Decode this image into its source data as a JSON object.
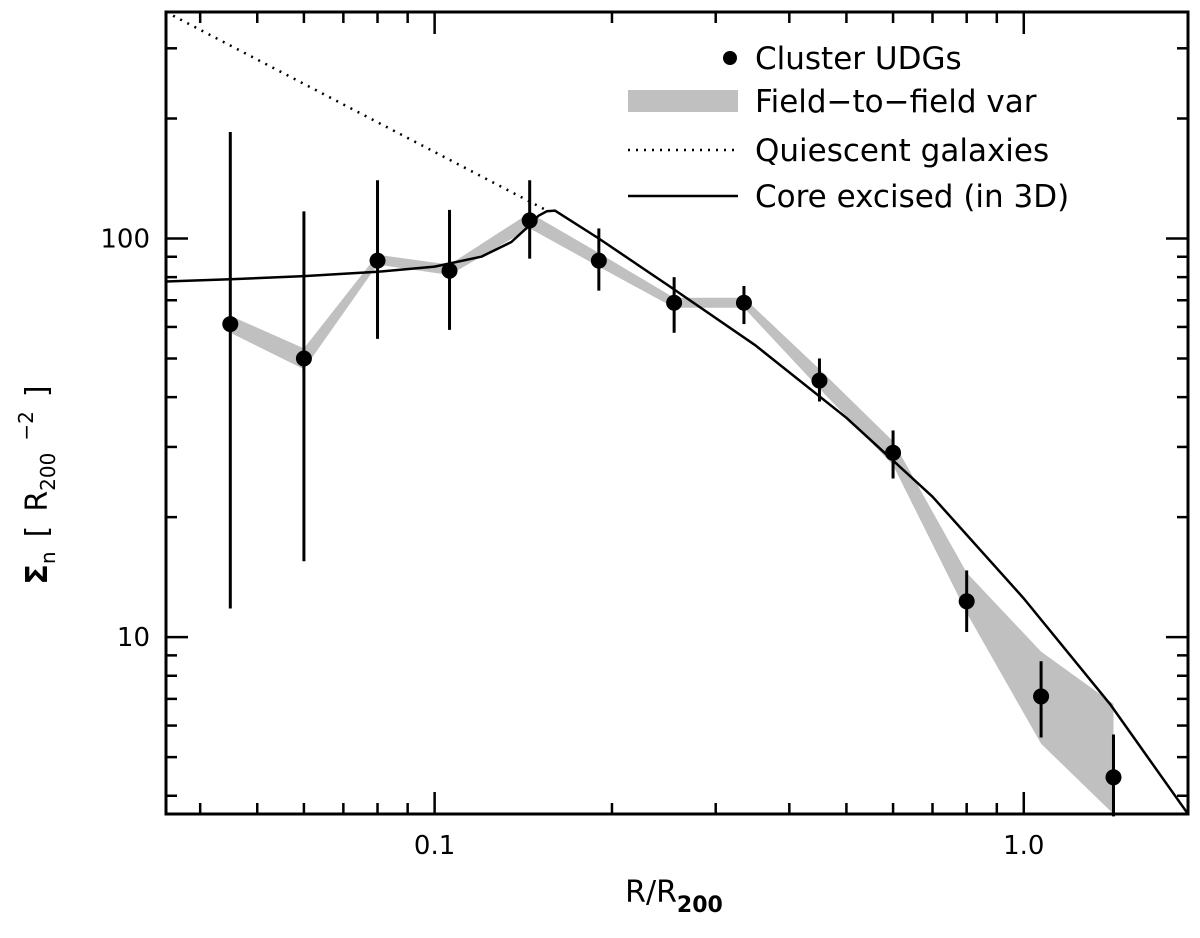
{
  "chart_data": {
    "type": "scatter",
    "title": "",
    "xlabel": "R/R",
    "xlabel_sub": "200",
    "ylabel_main": "Σ",
    "ylabel_sub_n": "n",
    "ylabel_bracket_open": "[",
    "ylabel_unit": "R",
    "ylabel_unit_sub": "200",
    "ylabel_unit_exp": "−2",
    "ylabel_bracket_close": "]",
    "xscale": "log",
    "yscale": "log",
    "xlim": [
      0.035,
      1.9
    ],
    "ylim": [
      3.6,
      370
    ],
    "x_tick_labels": [
      {
        "value": 0.1,
        "label": "0.1"
      },
      {
        "value": 1.0,
        "label": "1.0"
      }
    ],
    "y_tick_labels": [
      {
        "value": 10,
        "label": "10"
      },
      {
        "value": 100,
        "label": "100"
      }
    ],
    "legend": {
      "position": "top-right",
      "entries": [
        {
          "label": "Cluster UDGs",
          "style": "marker"
        },
        {
          "label": "Field−to−field var",
          "style": "band"
        },
        {
          "label": "Quiescent galaxies",
          "style": "dotted"
        },
        {
          "label": "Core excised (in 3D)",
          "style": "solid"
        }
      ]
    },
    "series": [
      {
        "name": "Cluster UDGs",
        "points": [
          {
            "x": 0.045,
            "y": 61,
            "ylo": 11.8,
            "yhi": 185
          },
          {
            "x": 0.06,
            "y": 50,
            "ylo": 15.5,
            "yhi": 117
          },
          {
            "x": 0.08,
            "y": 88,
            "ylo": 56,
            "yhi": 140
          },
          {
            "x": 0.106,
            "y": 83,
            "ylo": 59,
            "yhi": 118
          },
          {
            "x": 0.145,
            "y": 111,
            "ylo": 89,
            "yhi": 140
          },
          {
            "x": 0.19,
            "y": 88,
            "ylo": 74,
            "yhi": 106
          },
          {
            "x": 0.255,
            "y": 69,
            "ylo": 58,
            "yhi": 80
          },
          {
            "x": 0.335,
            "y": 69,
            "ylo": 61,
            "yhi": 76
          },
          {
            "x": 0.45,
            "y": 44,
            "ylo": 39,
            "yhi": 50
          },
          {
            "x": 0.6,
            "y": 29,
            "ylo": 25,
            "yhi": 33
          },
          {
            "x": 0.8,
            "y": 12.3,
            "ylo": 10.3,
            "yhi": 14.7
          },
          {
            "x": 1.07,
            "y": 7.1,
            "ylo": 5.6,
            "yhi": 8.7
          },
          {
            "x": 1.42,
            "y": 4.45,
            "ylo": 3.55,
            "yhi": 5.7
          }
        ]
      },
      {
        "name": "Field−to−field var",
        "x": [
          0.045,
          0.06,
          0.08,
          0.106,
          0.145,
          0.19,
          0.255,
          0.335,
          0.45,
          0.6,
          0.8,
          1.07,
          1.42
        ],
        "low": [
          58,
          47,
          86,
          81,
          106,
          85,
          67,
          67,
          42,
          27,
          11.5,
          5.4,
          3.6
        ],
        "high": [
          64,
          53,
          91,
          86,
          116,
          92,
          71,
          71,
          47,
          31,
          14.5,
          9.2,
          6.8
        ]
      },
      {
        "name": "Quiescent galaxies",
        "style": "dotted",
        "x": [
          0.035,
          0.156
        ],
        "y": [
          370,
          117
        ]
      },
      {
        "name": "Core excised (in 3D)",
        "style": "solid",
        "x": [
          0.035,
          0.045,
          0.06,
          0.08,
          0.1,
          0.12,
          0.135,
          0.145,
          0.15,
          0.155,
          0.16,
          0.19,
          0.25,
          0.35,
          0.5,
          0.7,
          1.0,
          1.4,
          1.9
        ],
        "y": [
          78,
          79,
          80.5,
          82.5,
          85,
          90,
          98,
          108,
          114,
          117,
          117.5,
          100,
          76,
          54,
          35.5,
          22.5,
          12.5,
          6.8,
          3.6
        ]
      }
    ]
  }
}
